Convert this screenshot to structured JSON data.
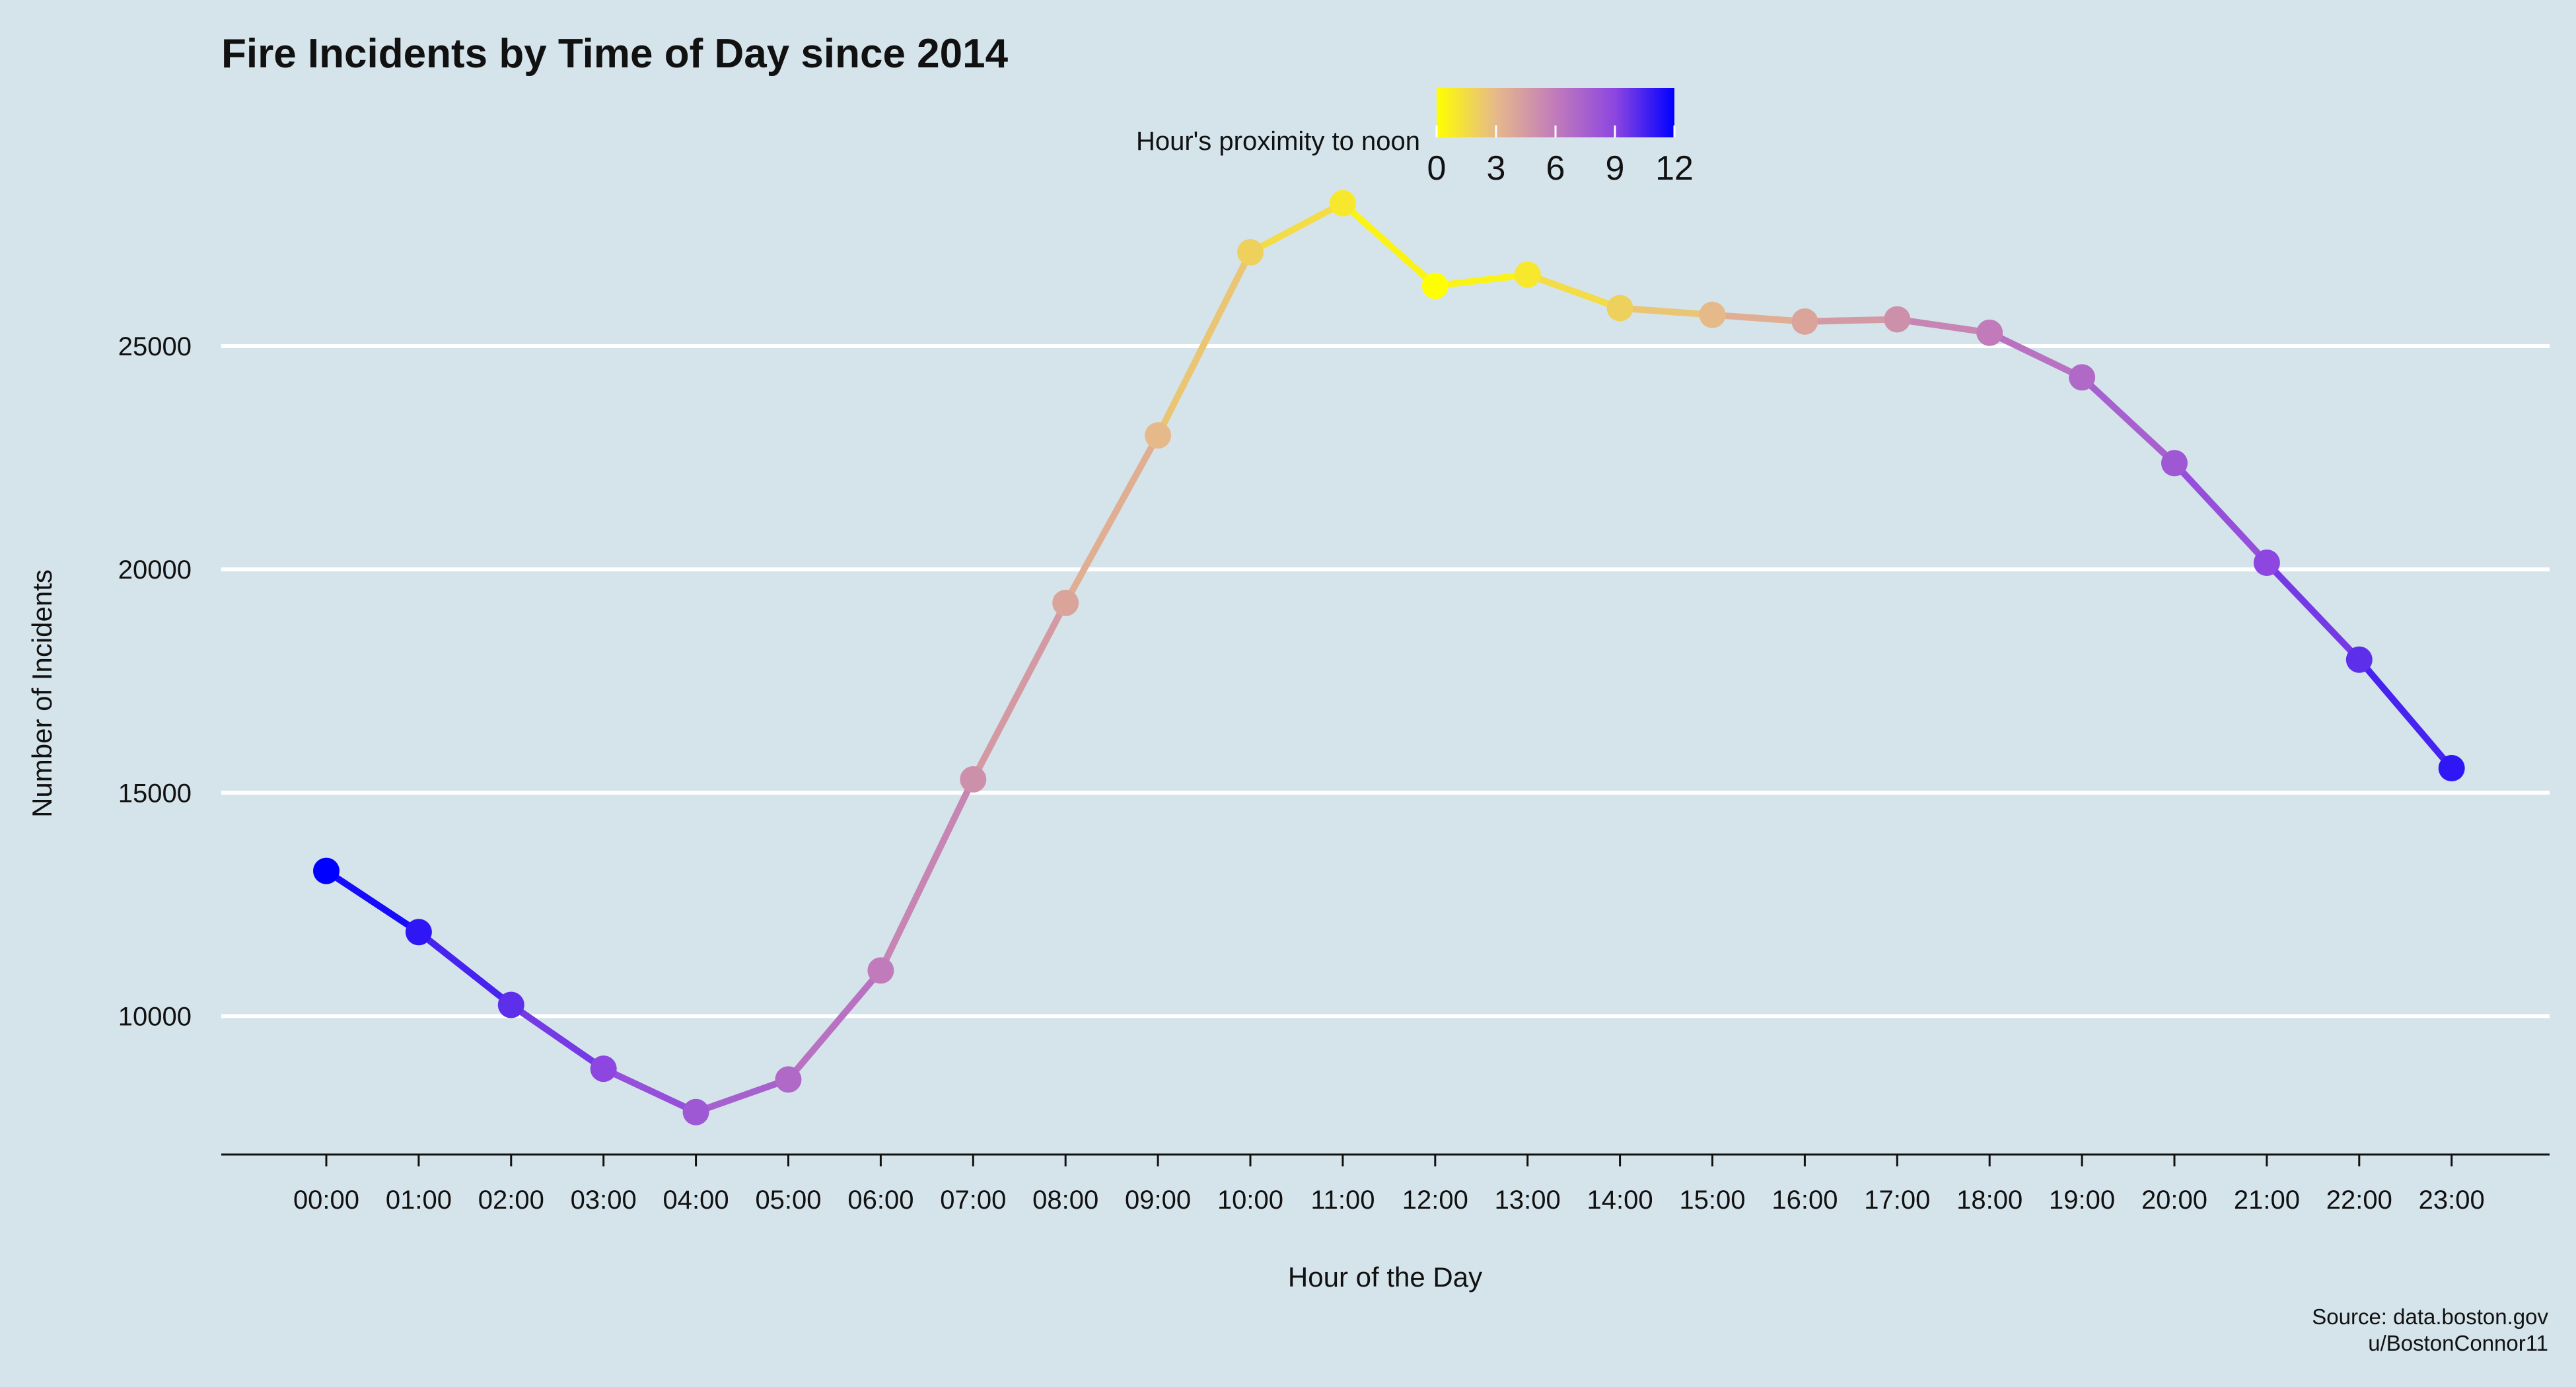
{
  "chart_data": {
    "type": "line",
    "title": "Fire Incidents by Time of Day since 2014",
    "xlabel": "Hour of the Day",
    "ylabel": "Number of Incidents",
    "categories": [
      "00:00",
      "01:00",
      "02:00",
      "03:00",
      "04:00",
      "05:00",
      "06:00",
      "07:00",
      "08:00",
      "09:00",
      "10:00",
      "11:00",
      "12:00",
      "13:00",
      "14:00",
      "15:00",
      "16:00",
      "17:00",
      "18:00",
      "19:00",
      "20:00",
      "21:00",
      "22:00",
      "23:00"
    ],
    "values": [
      13250,
      11880,
      10250,
      8820,
      7850,
      8580,
      11020,
      15300,
      19250,
      23000,
      27100,
      28200,
      26350,
      26600,
      25850,
      25700,
      25550,
      25600,
      25300,
      24300,
      22380,
      20150,
      17980,
      15550
    ],
    "proximity_to_noon": [
      12,
      11,
      10,
      9,
      8,
      7,
      6,
      5,
      4,
      3,
      2,
      1,
      0,
      1,
      2,
      3,
      4,
      5,
      6,
      7,
      8,
      9,
      10,
      11
    ],
    "ylim": [
      6900,
      29200
    ],
    "yticks": [
      10000,
      15000,
      20000,
      25000
    ],
    "grid": "horizontal",
    "legend": {
      "title": "Hour's proximity to noon",
      "ticks": [
        0,
        3,
        6,
        9,
        12
      ],
      "range": [
        0,
        12
      ],
      "colors": [
        "#ffff00",
        "#e6b98b",
        "#c17bbb",
        "#8d46e0",
        "#0000ff"
      ],
      "placement": "top"
    },
    "caption": [
      "Source: data.boston.gov",
      "u/BostonConnor11"
    ]
  }
}
